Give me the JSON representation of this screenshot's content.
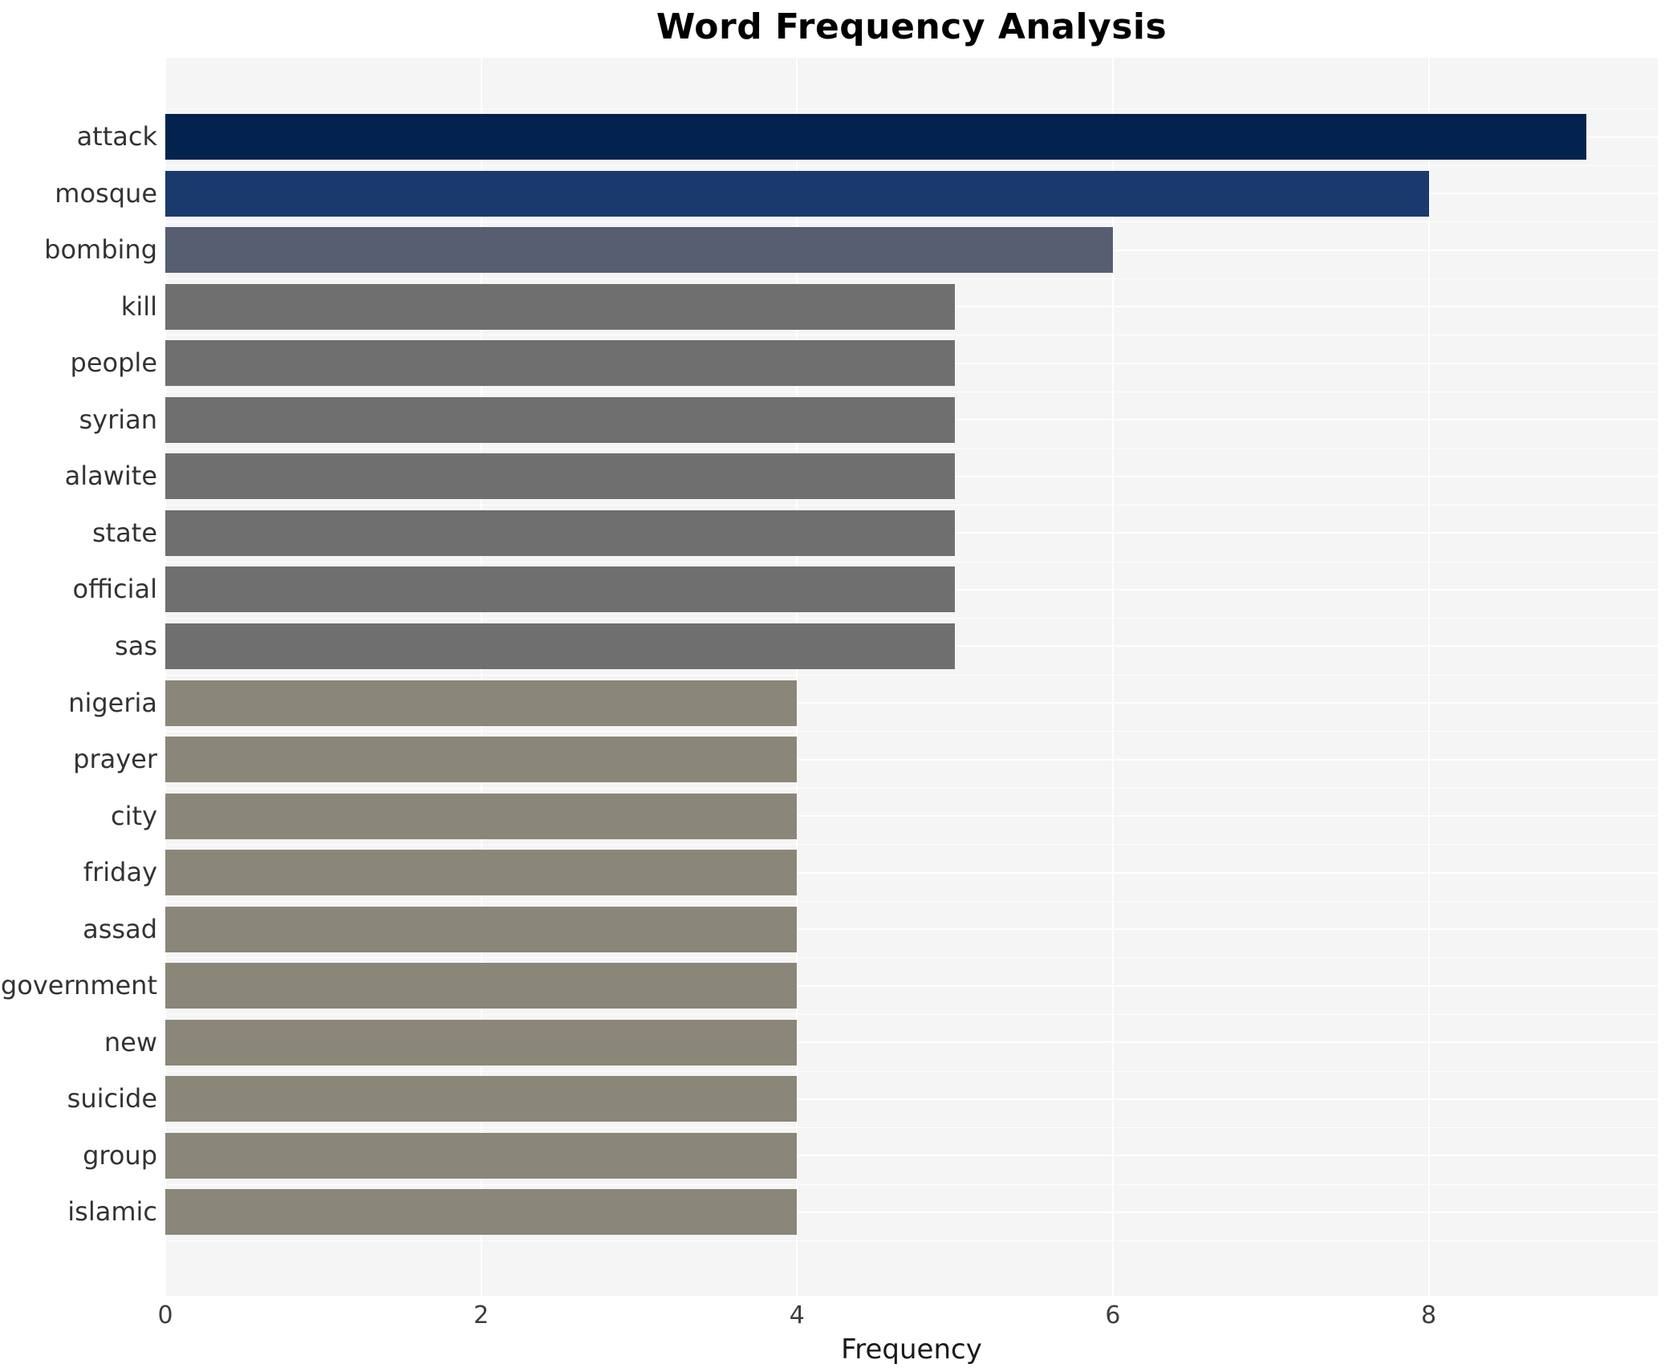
{
  "title": "Word Frequency Analysis",
  "x_axis_title": "Frequency",
  "chart_data": {
    "type": "bar",
    "orientation": "horizontal",
    "title": "Word Frequency Analysis",
    "xlabel": "Frequency",
    "ylabel": "",
    "categories": [
      "attack",
      "mosque",
      "bombing",
      "kill",
      "people",
      "syrian",
      "alawite",
      "state",
      "official",
      "sas",
      "nigeria",
      "prayer",
      "city",
      "friday",
      "assad",
      "government",
      "new",
      "suicide",
      "group",
      "islamic"
    ],
    "values": [
      9,
      8,
      6,
      5,
      5,
      5,
      5,
      5,
      5,
      5,
      4,
      4,
      4,
      4,
      4,
      4,
      4,
      4,
      4,
      4
    ],
    "bar_colors": [
      "#03234e",
      "#1a3a6e",
      "#575e71",
      "#6f6f6f",
      "#6f6f6f",
      "#6f6f6f",
      "#6f6f6f",
      "#6f6f6f",
      "#6f6f6f",
      "#6f6f6f",
      "#8a8778",
      "#8a8778",
      "#8a8778",
      "#8a8778",
      "#8a8778",
      "#8a8778",
      "#8a8778",
      "#8a8778",
      "#8a8778",
      "#8a8778"
    ],
    "xticks": [
      0,
      2,
      4,
      6,
      8
    ],
    "xtick_labels": [
      "0",
      "2",
      "4",
      "6",
      "8"
    ],
    "xlim": [
      0,
      9.45
    ],
    "grid": true,
    "legend": false,
    "panel_background": "#f5f5f6",
    "grid_color": "#ffffff",
    "text_color": "#333333",
    "title_color": "#000000"
  }
}
